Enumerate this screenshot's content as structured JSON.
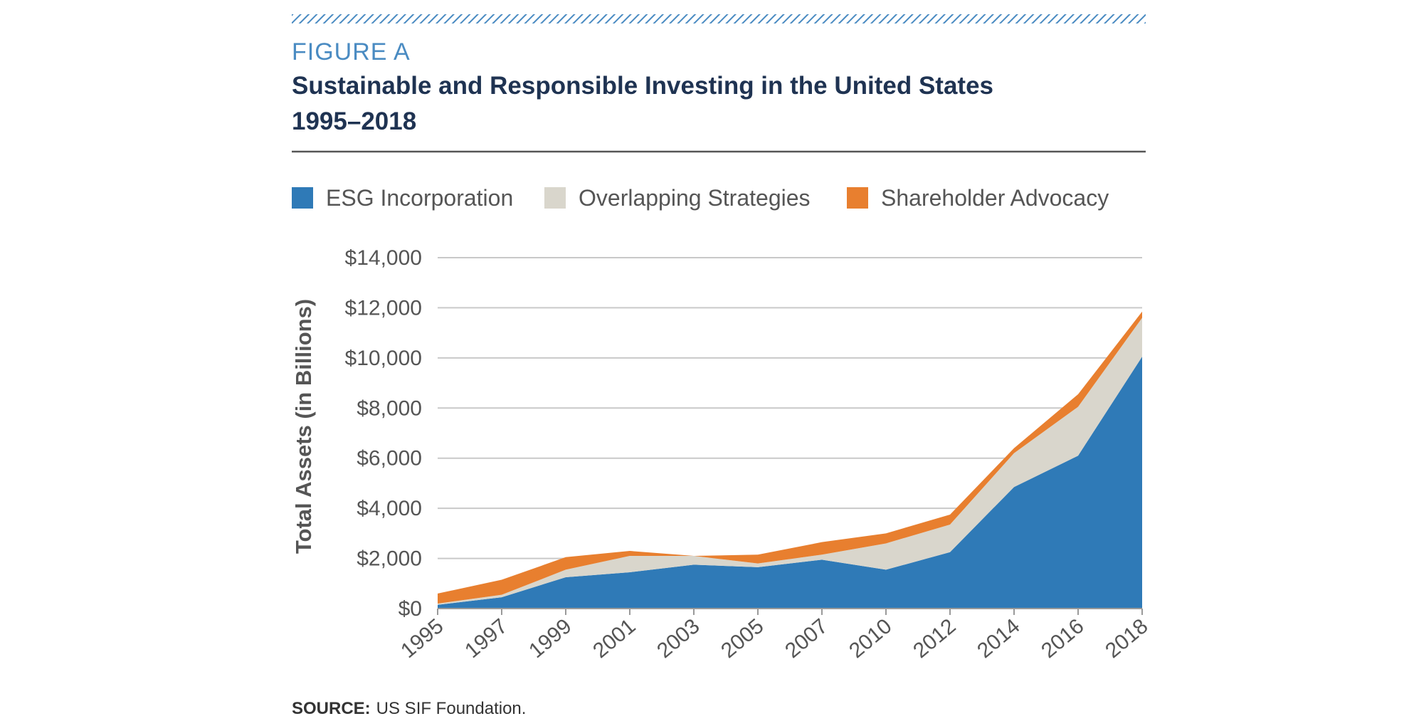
{
  "figure": {
    "label": "FIGURE A",
    "title_line1": "Sustainable and Responsible Investing in the United States",
    "title_line2": "1995–2018",
    "source_label": "SOURCE:",
    "source_text": "US SIF Foundation."
  },
  "colors": {
    "esg": "#2f7ab7",
    "overlap": "#d9d6cc",
    "advocacy": "#e87f2f",
    "figure_label": "#4a8bc2",
    "title": "#1f3352",
    "grid": "#c9c9c9",
    "text": "#555555",
    "hatch": "#4a8bc2"
  },
  "chart_data": {
    "type": "area",
    "stacked": true,
    "title": "Sustainable and Responsible Investing in the United States 1995–2018",
    "xlabel": "",
    "ylabel": "Total Assets (in Billions)",
    "categories": [
      "1995",
      "1997",
      "1999",
      "2001",
      "2003",
      "2005",
      "2007",
      "2010",
      "2012",
      "2014",
      "2016",
      "2018"
    ],
    "ylim": [
      0,
      14000
    ],
    "yticks": [
      0,
      2000,
      4000,
      6000,
      8000,
      10000,
      12000,
      14000
    ],
    "ytick_labels": [
      "$0",
      "$2,000",
      "$4,000",
      "$6,000",
      "$8,000",
      "$10,000",
      "$12,000",
      "$14,000"
    ],
    "grid": true,
    "legend_position": "top",
    "series": [
      {
        "name": "ESG Incorporation",
        "color_key": "esg",
        "values": [
          150,
          450,
          1250,
          1450,
          1750,
          1650,
          1950,
          1550,
          2250,
          4850,
          6100,
          10050
        ]
      },
      {
        "name": "Overlapping Strategies",
        "color_key": "overlap",
        "values": [
          50,
          100,
          300,
          650,
          350,
          150,
          200,
          1050,
          1100,
          1350,
          1950,
          1550
        ]
      },
      {
        "name": "Shareholder Advocacy",
        "color_key": "advocacy",
        "values": [
          400,
          600,
          500,
          200,
          0,
          350,
          500,
          400,
          400,
          200,
          500,
          250
        ]
      }
    ]
  }
}
